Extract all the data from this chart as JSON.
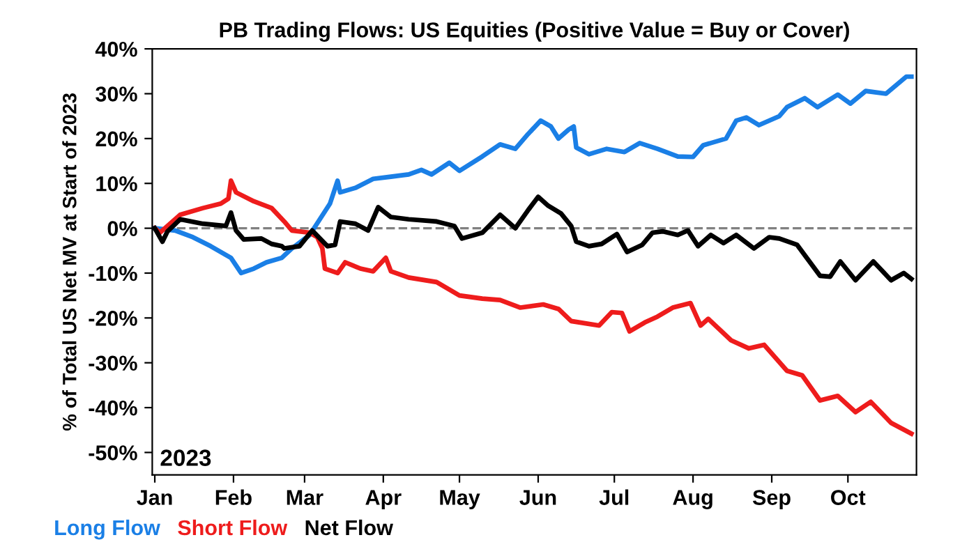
{
  "chart_data": {
    "type": "line",
    "title": "PB Trading Flows: US Equities (Positive Value = Buy or Cover)",
    "ylabel": "% of Total US Net MV at Start of 2023",
    "annotations": [
      "2023"
    ],
    "xlim": [
      "2022-12-31",
      "2023-10-28"
    ],
    "xticks": [
      {
        "value": "2023-01-01",
        "label": "Jan"
      },
      {
        "value": "2023-02-01",
        "label": "Feb"
      },
      {
        "value": "2023-03-01",
        "label": "Mar"
      },
      {
        "value": "2023-04-01",
        "label": "Apr"
      },
      {
        "value": "2023-05-01",
        "label": "May"
      },
      {
        "value": "2023-06-01",
        "label": "Jun"
      },
      {
        "value": "2023-07-01",
        "label": "Jul"
      },
      {
        "value": "2023-08-01",
        "label": "Aug"
      },
      {
        "value": "2023-09-01",
        "label": "Sep"
      },
      {
        "value": "2023-10-01",
        "label": "Oct"
      }
    ],
    "ylim": [
      -55,
      40
    ],
    "yticks": [
      {
        "value": 40,
        "label": "40%"
      },
      {
        "value": 30,
        "label": "30%"
      },
      {
        "value": 20,
        "label": "20%"
      },
      {
        "value": 10,
        "label": "10%"
      },
      {
        "value": 0,
        "label": "0%"
      },
      {
        "value": -10,
        "label": "-10%"
      },
      {
        "value": -20,
        "label": "-20%"
      },
      {
        "value": -30,
        "label": "-30%"
      },
      {
        "value": -40,
        "label": "-40%"
      },
      {
        "value": -50,
        "label": "-50%"
      }
    ],
    "ref_lines": [
      {
        "axis": "y",
        "value": 0,
        "color": "#808080",
        "line_style": "dashed"
      }
    ],
    "grid": false,
    "legend": "bottom left",
    "marker": "none",
    "line_style": "solid",
    "series": [
      {
        "name": "Long Flow",
        "color": "#1a7fe6",
        "x": [
          "2023-01-01",
          "2023-01-09",
          "2023-01-16",
          "2023-01-23",
          "2023-01-31",
          "2023-02-04",
          "2023-02-09",
          "2023-02-14",
          "2023-02-20",
          "2023-02-24",
          "2023-03-03",
          "2023-03-07",
          "2023-03-11",
          "2023-03-14",
          "2023-03-15",
          "2023-03-21",
          "2023-03-28",
          "2023-04-04",
          "2023-04-11",
          "2023-04-16",
          "2023-04-20",
          "2023-04-27",
          "2023-05-01",
          "2023-05-10",
          "2023-05-17",
          "2023-05-23",
          "2023-05-28",
          "2023-06-02",
          "2023-06-06",
          "2023-06-09",
          "2023-06-13",
          "2023-06-15",
          "2023-06-16",
          "2023-06-21",
          "2023-06-28",
          "2023-07-05",
          "2023-07-11",
          "2023-07-18",
          "2023-07-26",
          "2023-08-01",
          "2023-08-05",
          "2023-08-14",
          "2023-08-18",
          "2023-08-22",
          "2023-08-27",
          "2023-09-04",
          "2023-09-07",
          "2023-09-14",
          "2023-09-19",
          "2023-09-27",
          "2023-10-02",
          "2023-10-08",
          "2023-10-16",
          "2023-10-24",
          "2023-10-26"
        ],
        "values": [
          0,
          -0.5,
          -2,
          -4,
          -6.6,
          -10,
          -9,
          -7.6,
          -6.6,
          -4.5,
          -1.5,
          2,
          5.5,
          10.6,
          8,
          9,
          11,
          11.5,
          12,
          13,
          12,
          14.6,
          12.8,
          16,
          18.7,
          17.7,
          21,
          24,
          22.7,
          20,
          22,
          22.7,
          18,
          16.5,
          17.7,
          17,
          19,
          17.7,
          16,
          15.9,
          18.5,
          20,
          24,
          24.7,
          23,
          25,
          27,
          29,
          27,
          29.8,
          27.8,
          30.6,
          30,
          33.8,
          33.8
        ]
      },
      {
        "name": "Short Flow",
        "color": "#ee1c1c",
        "x": [
          "2023-01-01",
          "2023-01-03",
          "2023-01-11",
          "2023-01-20",
          "2023-01-27",
          "2023-01-30",
          "2023-01-31",
          "2023-02-02",
          "2023-02-09",
          "2023-02-16",
          "2023-02-21",
          "2023-02-24",
          "2023-03-03",
          "2023-03-06",
          "2023-03-08",
          "2023-03-09",
          "2023-03-14",
          "2023-03-17",
          "2023-03-23",
          "2023-03-28",
          "2023-04-02",
          "2023-04-04",
          "2023-04-11",
          "2023-04-22",
          "2023-05-01",
          "2023-05-10",
          "2023-05-17",
          "2023-05-25",
          "2023-06-03",
          "2023-06-09",
          "2023-06-14",
          "2023-06-25",
          "2023-06-30",
          "2023-07-04",
          "2023-07-07",
          "2023-07-13",
          "2023-07-18",
          "2023-07-24",
          "2023-07-31",
          "2023-08-04",
          "2023-08-07",
          "2023-08-16",
          "2023-08-23",
          "2023-08-29",
          "2023-09-07",
          "2023-09-13",
          "2023-09-20",
          "2023-09-27",
          "2023-10-04",
          "2023-10-10",
          "2023-10-18",
          "2023-10-26"
        ],
        "values": [
          0,
          -1,
          3,
          4.5,
          5.5,
          6.6,
          10.6,
          8,
          6,
          4.5,
          1.5,
          -0.5,
          -1,
          -2,
          -4.5,
          -9,
          -10,
          -7.6,
          -9,
          -9.6,
          -6.6,
          -9.6,
          -11,
          -12,
          -15,
          -15.7,
          -16,
          -17.7,
          -17,
          -18,
          -20.7,
          -21.7,
          -18.7,
          -18.9,
          -23,
          -21,
          -19.7,
          -17.7,
          -16.7,
          -21.7,
          -20.2,
          -25,
          -26.8,
          -26,
          -31.8,
          -32.8,
          -38.4,
          -37.4,
          -41,
          -38.7,
          -43.4,
          -45.8
        ]
      },
      {
        "name": "Net Flow",
        "color": "#000000",
        "x": [
          "2023-01-01",
          "2023-01-04",
          "2023-01-06",
          "2023-01-11",
          "2023-01-20",
          "2023-01-29",
          "2023-01-31",
          "2023-02-02",
          "2023-02-05",
          "2023-02-12",
          "2023-02-16",
          "2023-02-20",
          "2023-02-21",
          "2023-02-27",
          "2023-03-04",
          "2023-03-10",
          "2023-03-13",
          "2023-03-15",
          "2023-03-21",
          "2023-03-26",
          "2023-03-30",
          "2023-04-04",
          "2023-04-11",
          "2023-04-22",
          "2023-04-29",
          "2023-05-02",
          "2023-05-10",
          "2023-05-17",
          "2023-05-23",
          "2023-05-28",
          "2023-06-01",
          "2023-06-05",
          "2023-06-10",
          "2023-06-14",
          "2023-06-16",
          "2023-06-21",
          "2023-06-26",
          "2023-07-02",
          "2023-07-06",
          "2023-07-12",
          "2023-07-16",
          "2023-07-20",
          "2023-07-26",
          "2023-07-30",
          "2023-08-03",
          "2023-08-08",
          "2023-08-13",
          "2023-08-18",
          "2023-08-25",
          "2023-08-31",
          "2023-09-04",
          "2023-09-11",
          "2023-09-20",
          "2023-09-24",
          "2023-09-28",
          "2023-10-04",
          "2023-10-11",
          "2023-10-18",
          "2023-10-23",
          "2023-10-26"
        ],
        "values": [
          0,
          -3,
          -0.7,
          2,
          1,
          0.5,
          3.5,
          -0.5,
          -2.5,
          -2.3,
          -3.5,
          -4,
          -4.5,
          -4,
          -0.5,
          -4,
          -3.7,
          1.5,
          1,
          -0.5,
          4.7,
          2.5,
          2,
          1.5,
          0.5,
          -2.3,
          -1,
          3,
          0,
          4,
          7,
          5,
          3.3,
          0.5,
          -3,
          -4,
          -3.5,
          -1.3,
          -5.3,
          -3.7,
          -1,
          -0.7,
          -1.5,
          -0.5,
          -4,
          -1.5,
          -3.3,
          -1.5,
          -4.5,
          -2,
          -2.3,
          -3.7,
          -10.6,
          -10.8,
          -7.4,
          -11.6,
          -7.4,
          -11.6,
          -10,
          -11.3
        ]
      }
    ]
  }
}
